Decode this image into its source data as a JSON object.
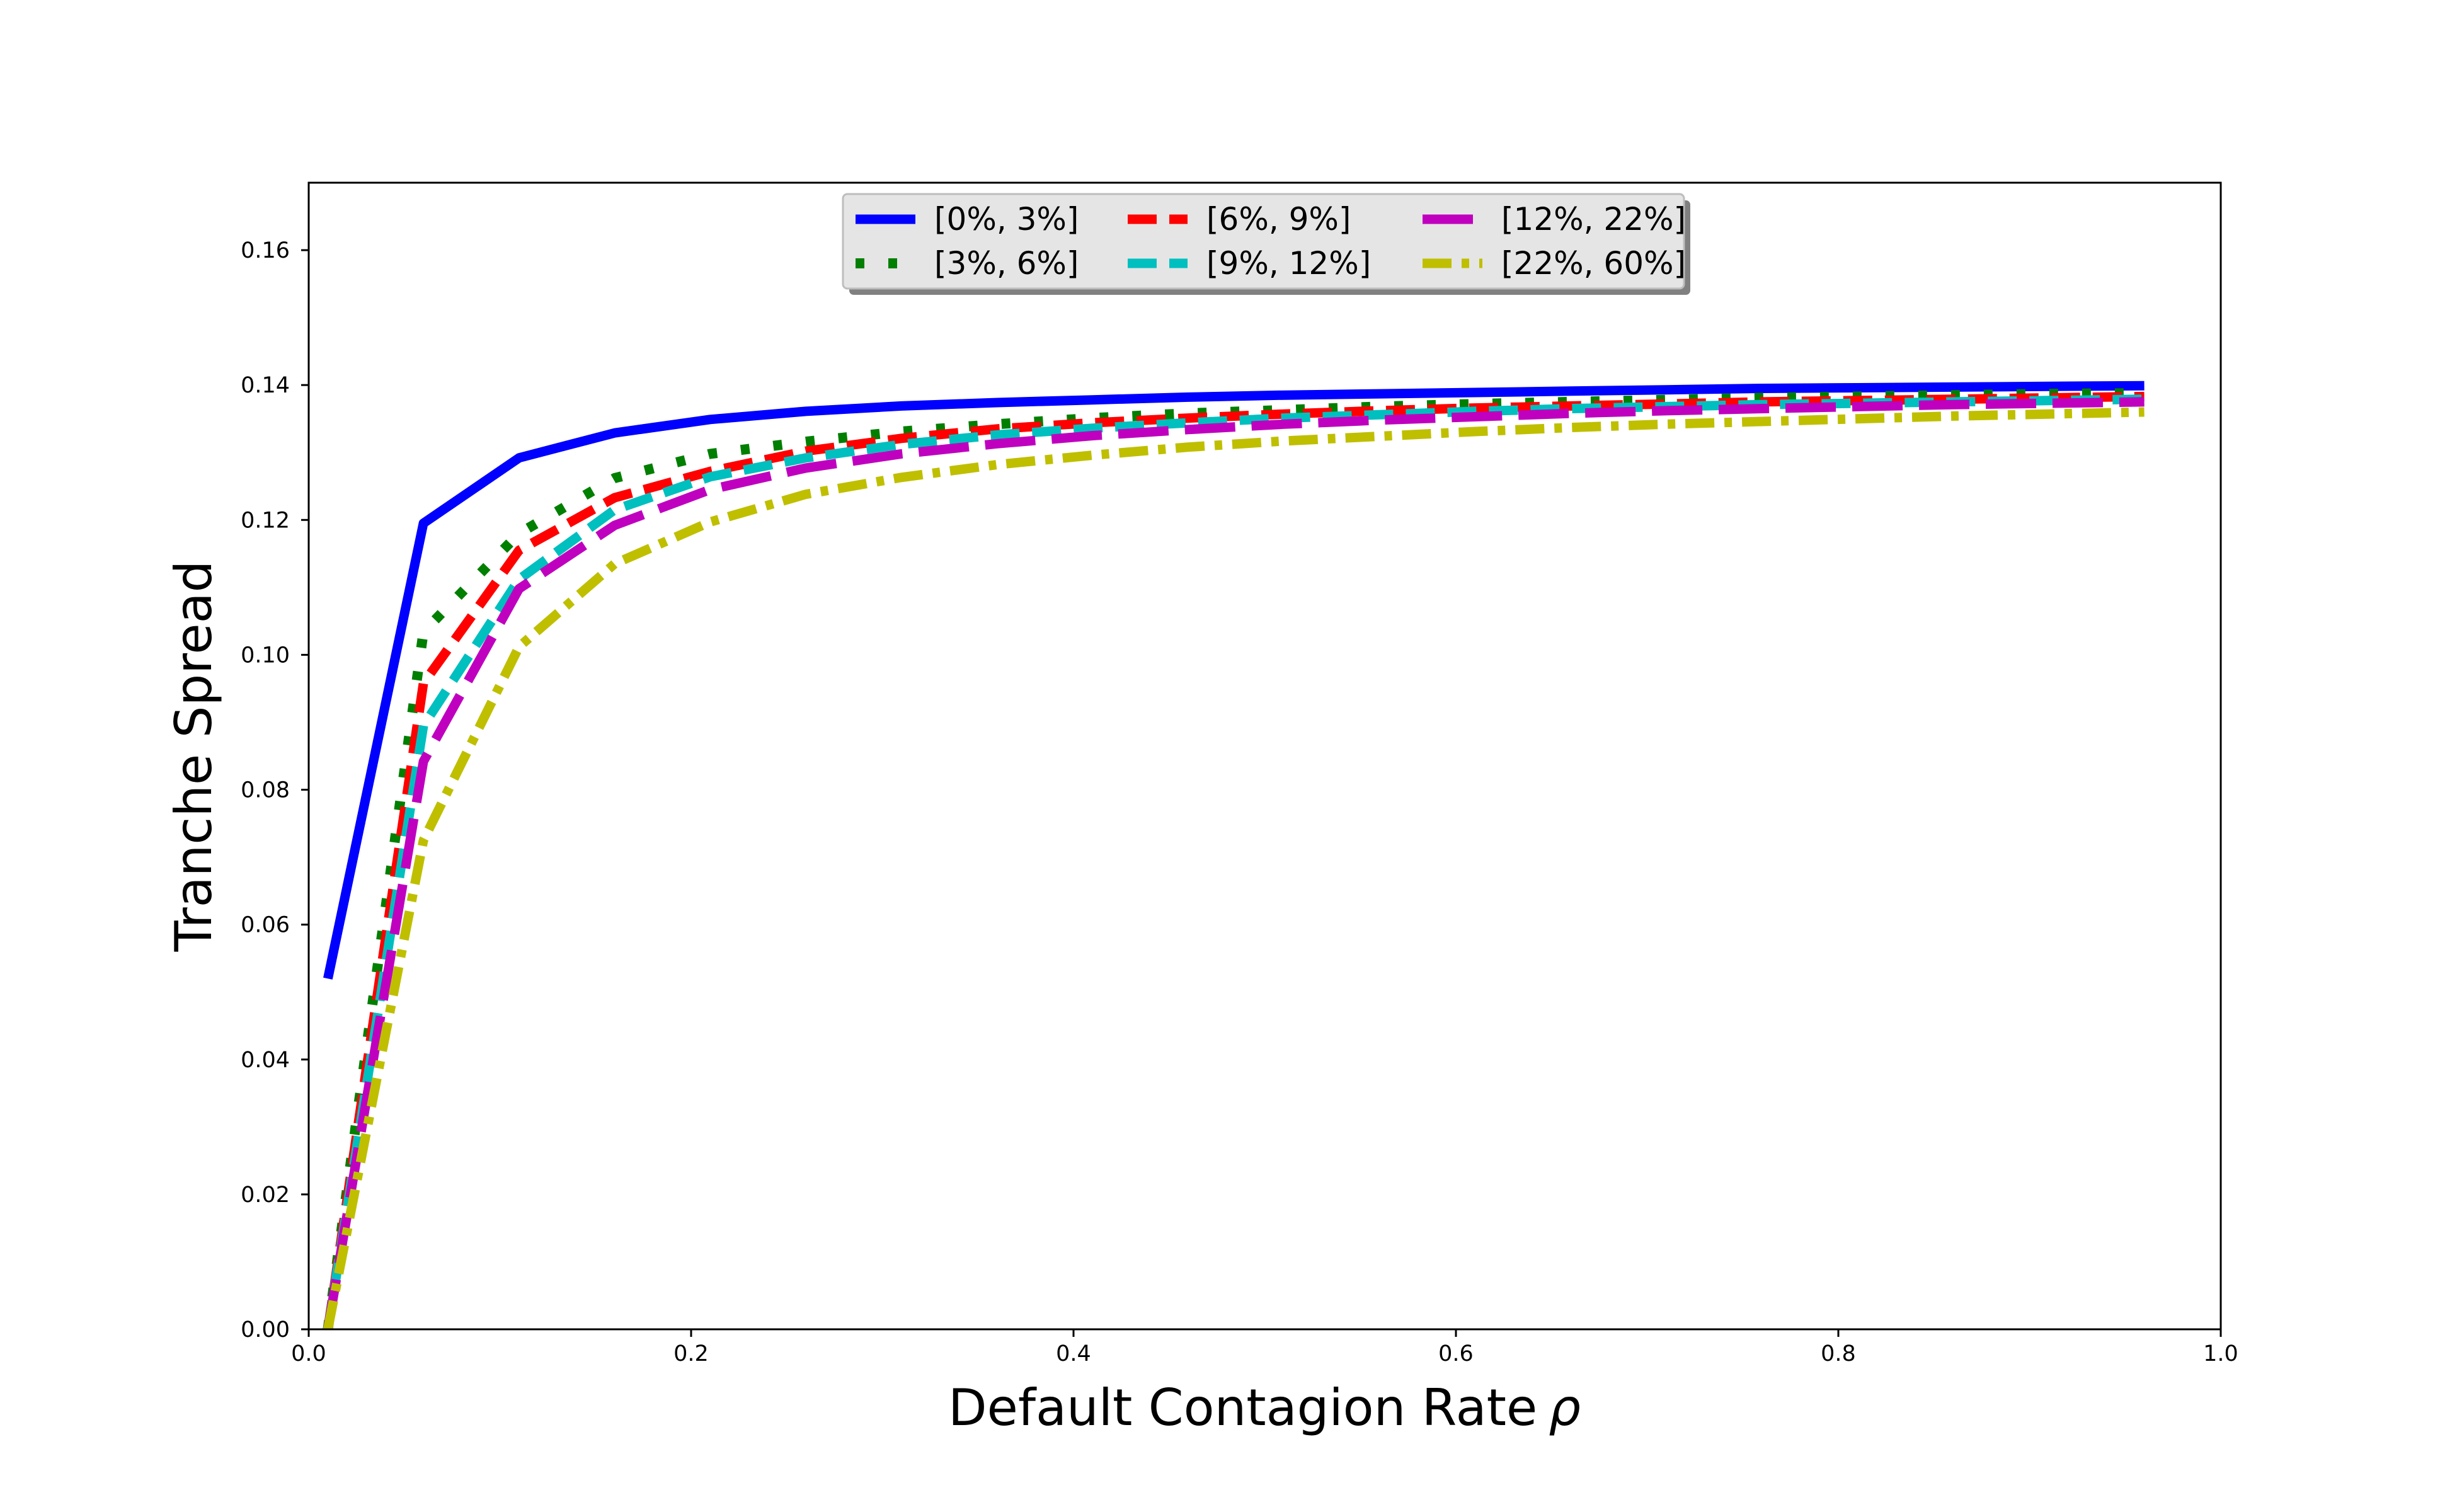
{
  "chart_data": {
    "type": "line",
    "title": "",
    "xlabel": "Default Contagion Rate",
    "xlabel_symbol": "ρ",
    "ylabel": "Tranche Spread",
    "xlim": [
      0.0,
      1.0
    ],
    "ylim": [
      0.0,
      0.17
    ],
    "xticks": [
      "0.0",
      "0.2",
      "0.4",
      "0.6",
      "0.8",
      "1.0"
    ],
    "yticks": [
      "0.00",
      "0.02",
      "0.04",
      "0.06",
      "0.08",
      "0.10",
      "0.12",
      "0.14",
      "0.16"
    ],
    "grid": false,
    "legend_position": "upper-center",
    "x": [
      0.01,
      0.06,
      0.11,
      0.16,
      0.21,
      0.26,
      0.31,
      0.36,
      0.41,
      0.46,
      0.51,
      0.56,
      0.61,
      0.66,
      0.71,
      0.76,
      0.81,
      0.86,
      0.91,
      0.96
    ],
    "series": [
      {
        "name": "[0%, 3%]",
        "color": "#0000ff",
        "style": "solid",
        "values": [
          0.052,
          0.1195,
          0.1292,
          0.1329,
          0.1349,
          0.1361,
          0.1369,
          0.1374,
          0.1378,
          0.1382,
          0.1385,
          0.1387,
          0.1389,
          0.1391,
          0.1393,
          0.1395,
          0.1396,
          0.1397,
          0.1398,
          0.1399
        ]
      },
      {
        "name": "[3%, 6%]",
        "color": "#007f00",
        "style": "dotted",
        "values": [
          0.0,
          0.1034,
          0.118,
          0.1262,
          0.1298,
          0.1316,
          0.1331,
          0.1342,
          0.1351,
          0.1358,
          0.1363,
          0.1368,
          0.1372,
          0.1375,
          0.1378,
          0.1381,
          0.1383,
          0.1385,
          0.1387,
          0.1388
        ]
      },
      {
        "name": "[6%, 9%]",
        "color": "#ff0000",
        "style": "dashed",
        "values": [
          0.0,
          0.0958,
          0.1155,
          0.1233,
          0.1272,
          0.1302,
          0.1321,
          0.1335,
          0.1344,
          0.1351,
          0.1357,
          0.1362,
          0.1366,
          0.1369,
          0.1372,
          0.1375,
          0.1377,
          0.1379,
          0.1381,
          0.1383
        ]
      },
      {
        "name": "[9%, 12%]",
        "color": "#00bfbf",
        "style": "dashed",
        "values": [
          0.0,
          0.0895,
          0.1112,
          0.1215,
          0.1264,
          0.1292,
          0.1312,
          0.1326,
          0.1336,
          0.1344,
          0.1351,
          0.1356,
          0.1361,
          0.1365,
          0.1368,
          0.1371,
          0.1373,
          0.1375,
          0.1377,
          0.1379
        ]
      },
      {
        "name": "[12%, 22%]",
        "color": "#bf00bf",
        "style": "longdash",
        "values": [
          0.0,
          0.0842,
          0.1098,
          0.1192,
          0.1245,
          0.1277,
          0.1298,
          0.1313,
          0.1325,
          0.1334,
          0.1342,
          0.1348,
          0.1353,
          0.1358,
          0.1362,
          0.1365,
          0.1368,
          0.1371,
          0.1373,
          0.1375
        ]
      },
      {
        "name": "[22%, 60%]",
        "color": "#bfbf00",
        "style": "dashdot",
        "values": [
          0.0,
          0.0725,
          0.1012,
          0.1135,
          0.1197,
          0.1238,
          0.1263,
          0.1282,
          0.1296,
          0.1308,
          0.1317,
          0.1324,
          0.1331,
          0.1337,
          0.1342,
          0.1346,
          0.135,
          0.1354,
          0.1357,
          0.136
        ]
      }
    ]
  }
}
